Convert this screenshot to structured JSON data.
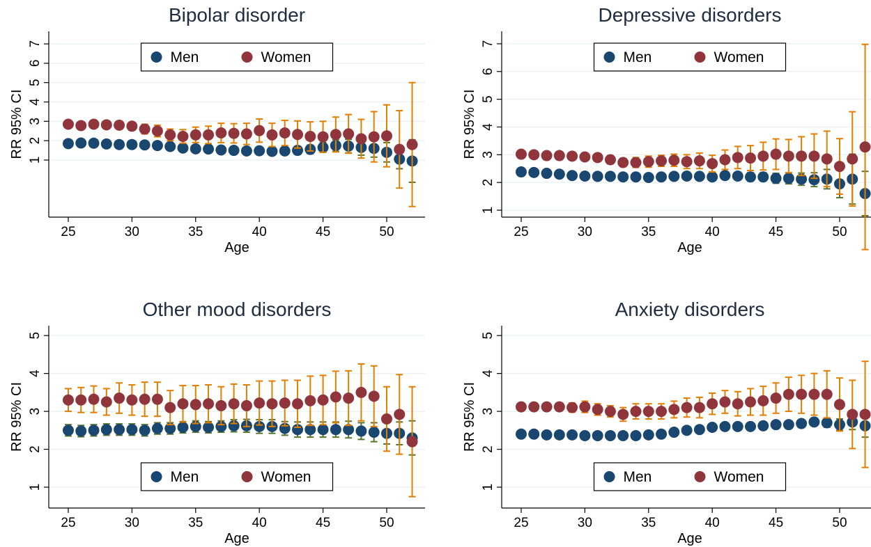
{
  "chart_data": [
    {
      "type": "scatter",
      "title": "Bipolar disorder",
      "xlabel": "Age",
      "ylabel": "RR 95% CI",
      "legend_position": "top",
      "grid": true,
      "x": [
        25,
        26,
        27,
        28,
        29,
        30,
        31,
        32,
        33,
        34,
        35,
        36,
        37,
        38,
        39,
        40,
        41,
        42,
        43,
        44,
        45,
        46,
        47,
        48,
        49,
        50,
        51,
        52
      ],
      "xlim": [
        23.47,
        53.01
      ],
      "xticks": [
        25,
        30,
        35,
        40,
        45,
        50
      ],
      "ylim": [
        -1.95,
        7.65
      ],
      "yticks": [
        1,
        2,
        3,
        4,
        5,
        6,
        7
      ],
      "series": [
        {
          "name": "Men",
          "color": "#1a476f",
          "error_color": "#55752f",
          "values": [
            1.85,
            1.88,
            1.87,
            1.83,
            1.8,
            1.8,
            1.78,
            1.75,
            1.7,
            1.62,
            1.58,
            1.57,
            1.52,
            1.5,
            1.47,
            1.48,
            1.45,
            1.47,
            1.5,
            1.55,
            1.65,
            1.75,
            1.72,
            1.65,
            1.6,
            1.4,
            1.05,
            0.95
          ],
          "errors": [
            0.1,
            0.1,
            0.1,
            0.1,
            0.1,
            0.1,
            0.1,
            0.12,
            0.12,
            0.13,
            0.13,
            0.14,
            0.15,
            0.15,
            0.16,
            0.17,
            0.18,
            0.2,
            0.2,
            0.22,
            0.25,
            0.3,
            0.35,
            0.4,
            0.45,
            0.5,
            0.5,
            1.1
          ]
        },
        {
          "name": "Women",
          "color": "#90353b",
          "error_color": "#e37e00",
          "values": [
            2.85,
            2.78,
            2.85,
            2.82,
            2.8,
            2.75,
            2.6,
            2.5,
            2.3,
            2.22,
            2.3,
            2.3,
            2.4,
            2.38,
            2.35,
            2.52,
            2.3,
            2.4,
            2.32,
            2.22,
            2.2,
            2.32,
            2.35,
            2.1,
            2.2,
            2.25,
            1.55,
            1.8
          ],
          "errors": [
            0.15,
            0.15,
            0.15,
            0.18,
            0.2,
            0.2,
            0.25,
            0.3,
            0.3,
            0.35,
            0.4,
            0.45,
            0.5,
            0.5,
            0.55,
            0.6,
            0.6,
            0.65,
            0.7,
            0.75,
            0.8,
            0.9,
            1.0,
            1.0,
            1.3,
            1.6,
            2.0,
            3.2
          ]
        }
      ]
    },
    {
      "type": "scatter",
      "title": "Depressive disorders",
      "xlabel": "Age",
      "ylabel": "RR 95% CI",
      "legend_position": "top",
      "grid": true,
      "x": [
        25,
        26,
        27,
        28,
        29,
        30,
        31,
        32,
        33,
        34,
        35,
        36,
        37,
        38,
        39,
        40,
        41,
        42,
        43,
        44,
        45,
        46,
        47,
        48,
        49,
        50,
        51,
        52
      ],
      "xlim": [
        23.47,
        53.01
      ],
      "xticks": [
        25,
        30,
        35,
        40,
        45,
        50
      ],
      "ylim": [
        0.75,
        7.45
      ],
      "yticks": [
        1,
        2,
        3,
        4,
        5,
        6,
        7
      ],
      "series": [
        {
          "name": "Men",
          "color": "#1a476f",
          "error_color": "#55752f",
          "values": [
            2.38,
            2.36,
            2.33,
            2.3,
            2.25,
            2.23,
            2.22,
            2.22,
            2.2,
            2.2,
            2.18,
            2.2,
            2.22,
            2.23,
            2.22,
            2.2,
            2.25,
            2.23,
            2.2,
            2.2,
            2.15,
            2.15,
            2.12,
            2.1,
            2.12,
            1.95,
            2.12,
            1.6
          ],
          "errors": [
            0.08,
            0.08,
            0.08,
            0.08,
            0.08,
            0.08,
            0.08,
            0.08,
            0.08,
            0.08,
            0.1,
            0.1,
            0.1,
            0.1,
            0.12,
            0.12,
            0.12,
            0.13,
            0.15,
            0.15,
            0.18,
            0.2,
            0.22,
            0.25,
            0.35,
            0.5,
            0.9,
            0.8
          ]
        },
        {
          "name": "Women",
          "color": "#90353b",
          "error_color": "#e37e00",
          "values": [
            3.02,
            3.0,
            2.97,
            2.97,
            2.95,
            2.92,
            2.9,
            2.82,
            2.72,
            2.72,
            2.75,
            2.78,
            2.8,
            2.75,
            2.78,
            2.68,
            2.82,
            2.9,
            2.88,
            2.95,
            3.02,
            2.95,
            2.95,
            2.95,
            2.85,
            2.58,
            2.85,
            3.28
          ],
          "errors": [
            0.1,
            0.1,
            0.1,
            0.1,
            0.1,
            0.12,
            0.12,
            0.15,
            0.15,
            0.18,
            0.2,
            0.2,
            0.22,
            0.25,
            0.28,
            0.3,
            0.35,
            0.4,
            0.45,
            0.5,
            0.55,
            0.6,
            0.7,
            0.8,
            1.0,
            1.0,
            1.7,
            3.7
          ]
        }
      ]
    },
    {
      "type": "scatter",
      "title": "Other mood disorders",
      "xlabel": "Age",
      "ylabel": "RR 95% CI",
      "legend_position": "bottom",
      "grid": true,
      "x": [
        25,
        26,
        27,
        28,
        29,
        30,
        31,
        32,
        33,
        34,
        35,
        36,
        37,
        38,
        39,
        40,
        41,
        42,
        43,
        44,
        45,
        46,
        47,
        48,
        49,
        50,
        51,
        52
      ],
      "xlim": [
        23.47,
        53.01
      ],
      "xticks": [
        25,
        30,
        35,
        40,
        45,
        50
      ],
      "ylim": [
        0.45,
        5.26
      ],
      "yticks": [
        1,
        2,
        3,
        4,
        5
      ],
      "series": [
        {
          "name": "Men",
          "color": "#1a476f",
          "error_color": "#55752f",
          "values": [
            2.5,
            2.48,
            2.5,
            2.52,
            2.52,
            2.52,
            2.5,
            2.55,
            2.55,
            2.58,
            2.6,
            2.58,
            2.6,
            2.62,
            2.62,
            2.6,
            2.6,
            2.55,
            2.52,
            2.52,
            2.52,
            2.52,
            2.52,
            2.48,
            2.45,
            2.42,
            2.42,
            2.3
          ],
          "errors": [
            0.15,
            0.15,
            0.15,
            0.15,
            0.15,
            0.15,
            0.15,
            0.15,
            0.15,
            0.15,
            0.15,
            0.15,
            0.15,
            0.16,
            0.17,
            0.18,
            0.18,
            0.18,
            0.2,
            0.2,
            0.2,
            0.2,
            0.22,
            0.22,
            0.25,
            0.28,
            0.3,
            0.45
          ]
        },
        {
          "name": "Women",
          "color": "#90353b",
          "error_color": "#e37e00",
          "values": [
            3.3,
            3.3,
            3.32,
            3.25,
            3.35,
            3.3,
            3.32,
            3.32,
            3.1,
            3.2,
            3.18,
            3.2,
            3.15,
            3.2,
            3.15,
            3.22,
            3.2,
            3.22,
            3.2,
            3.28,
            3.3,
            3.38,
            3.35,
            3.5,
            3.4,
            2.8,
            2.92,
            2.2
          ],
          "errors": [
            0.3,
            0.33,
            0.35,
            0.35,
            0.4,
            0.4,
            0.45,
            0.45,
            0.45,
            0.48,
            0.5,
            0.5,
            0.5,
            0.52,
            0.55,
            0.58,
            0.6,
            0.6,
            0.62,
            0.65,
            0.65,
            0.68,
            0.72,
            0.75,
            0.8,
            0.85,
            1.05,
            1.45
          ]
        }
      ]
    },
    {
      "type": "scatter",
      "title": "Anxiety disorders",
      "xlabel": "Age",
      "ylabel": "RR 95% CI",
      "legend_position": "bottom",
      "grid": true,
      "x": [
        25,
        26,
        27,
        28,
        29,
        30,
        31,
        32,
        33,
        34,
        35,
        36,
        37,
        38,
        39,
        40,
        41,
        42,
        43,
        44,
        45,
        46,
        47,
        48,
        49,
        50,
        51,
        52
      ],
      "xlim": [
        23.47,
        53.01
      ],
      "xticks": [
        25,
        30,
        35,
        40,
        45,
        50
      ],
      "ylim": [
        0.45,
        5.26
      ],
      "yticks": [
        1,
        2,
        3,
        4,
        5
      ],
      "series": [
        {
          "name": "Men",
          "color": "#1a476f",
          "error_color": "#55752f",
          "values": [
            2.4,
            2.4,
            2.38,
            2.38,
            2.38,
            2.36,
            2.36,
            2.36,
            2.36,
            2.36,
            2.38,
            2.4,
            2.45,
            2.5,
            2.52,
            2.58,
            2.6,
            2.6,
            2.6,
            2.62,
            2.65,
            2.65,
            2.68,
            2.72,
            2.7,
            2.65,
            2.72,
            2.62
          ],
          "errors": [
            0.05,
            0.05,
            0.05,
            0.05,
            0.05,
            0.05,
            0.05,
            0.05,
            0.05,
            0.05,
            0.05,
            0.05,
            0.06,
            0.06,
            0.06,
            0.06,
            0.07,
            0.07,
            0.07,
            0.08,
            0.08,
            0.09,
            0.1,
            0.1,
            0.12,
            0.15,
            0.2,
            0.3
          ]
        },
        {
          "name": "Women",
          "color": "#90353b",
          "error_color": "#e37e00",
          "values": [
            3.12,
            3.12,
            3.12,
            3.12,
            3.1,
            3.12,
            3.05,
            3.0,
            2.92,
            3.0,
            3.0,
            3.0,
            3.05,
            3.1,
            3.1,
            3.2,
            3.25,
            3.2,
            3.25,
            3.28,
            3.35,
            3.45,
            3.45,
            3.45,
            3.45,
            3.18,
            2.92,
            2.92
          ],
          "errors": [
            0.08,
            0.08,
            0.1,
            0.1,
            0.12,
            0.15,
            0.15,
            0.15,
            0.18,
            0.2,
            0.2,
            0.2,
            0.22,
            0.25,
            0.27,
            0.28,
            0.3,
            0.32,
            0.35,
            0.38,
            0.4,
            0.45,
            0.5,
            0.55,
            0.62,
            0.7,
            0.9,
            1.4
          ]
        }
      ]
    }
  ]
}
